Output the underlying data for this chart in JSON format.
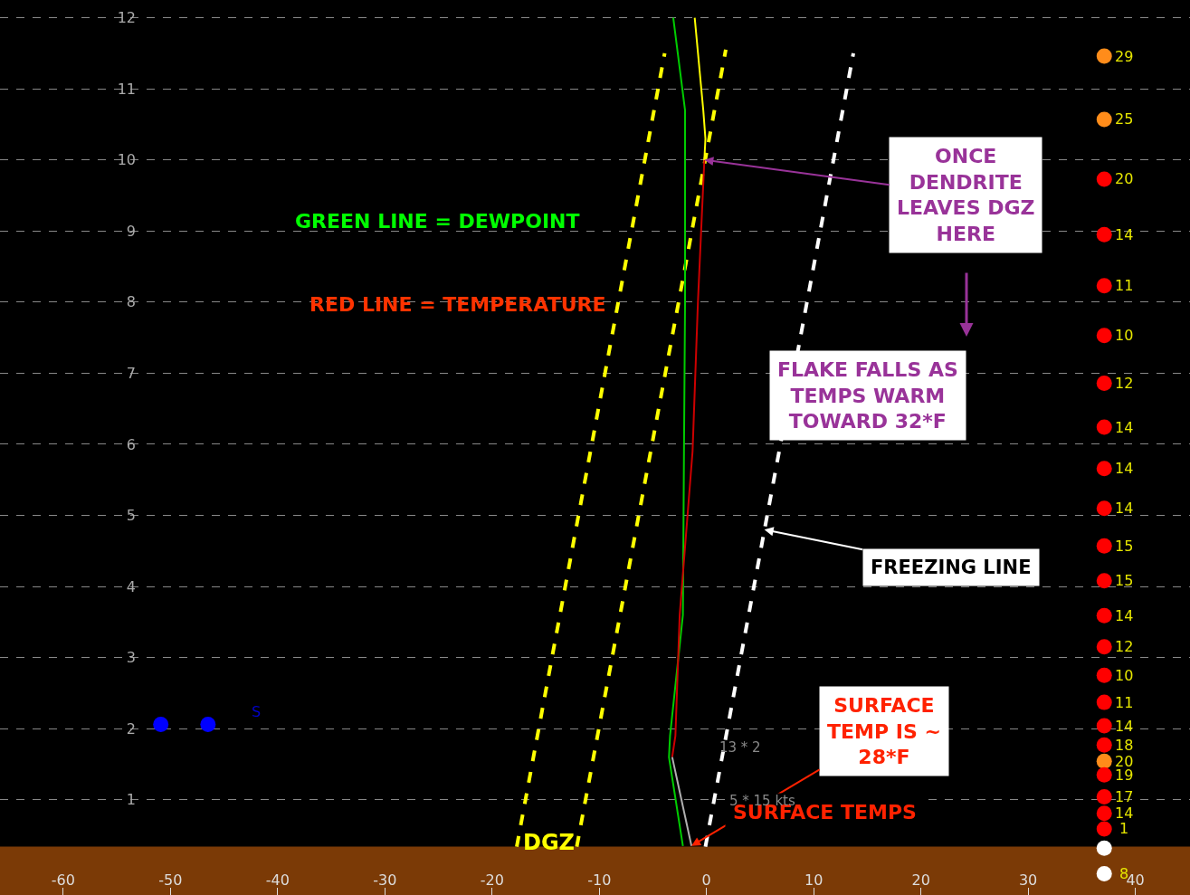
{
  "chart_data": {
    "type": "line",
    "xlim": [
      -65.9,
      45.1
    ],
    "ylim": [
      -0.34,
      12.25
    ],
    "xticks": [
      -60,
      -50,
      -40,
      -30,
      -20,
      -10,
      0,
      10,
      20,
      30,
      40
    ],
    "yticks": [
      1,
      2,
      3,
      4,
      5,
      6,
      7,
      8,
      9,
      10,
      11,
      12
    ],
    "grid": "y",
    "bands": [
      {
        "axis": "y",
        "from": -0.34,
        "to": 0.34,
        "color": "#7b3a06"
      }
    ],
    "series": [
      {
        "color": "#ffff00",
        "line_style": "dashed",
        "x": [
          -17.7,
          -3.9
        ],
        "values": [
          0.34,
          11.5
        ]
      },
      {
        "color": "#ffff00",
        "line_style": "dashed",
        "x": [
          -12.1,
          1.8
        ],
        "values": [
          0.34,
          11.55
        ]
      },
      {
        "color": "#ffffff",
        "line_style": "dashed",
        "x": [
          -0.1,
          13.7
        ],
        "values": [
          0.34,
          11.5
        ]
      },
      {
        "color": "#00cc00",
        "line_style": "solid",
        "x": [
          -3.1,
          -2.0,
          -2.0,
          -2.1,
          -2.2,
          -3.4,
          -3.5,
          -2.2
        ],
        "values": [
          12.0,
          10.7,
          8.0,
          5.9,
          3.6,
          1.9,
          1.6,
          0.35
        ]
      },
      {
        "color": "#cc0000",
        "line_style": "solid",
        "x": [
          -0.2,
          -0.8,
          -1.3,
          -2.5,
          -2.9,
          -3.2
        ],
        "values": [
          10.0,
          8.0,
          5.9,
          3.6,
          1.9,
          1.6
        ]
      },
      {
        "color": "#b0b0b0",
        "line_style": "solid",
        "x": [
          -3.2,
          -1.4
        ],
        "values": [
          1.6,
          0.35
        ]
      },
      {
        "color": "#ffff00",
        "line_style": "solid",
        "x": [
          -1.1,
          -0.3,
          -0.1,
          -0.2
        ],
        "values": [
          12.0,
          10.7,
          10.3,
          10.0
        ]
      },
      {
        "color": "#0000ff",
        "type": "scatter",
        "x": [
          -50.9,
          -46.5
        ],
        "values": [
          2.06,
          2.06
        ]
      },
      {
        "type": "scatter",
        "x": [
          37.1,
          37.1,
          37.1,
          37.1,
          37.1,
          37.1,
          37.1,
          37.1,
          37.1,
          37.1,
          37.1,
          37.1,
          37.1,
          37.1,
          37.1,
          37.1,
          37.1,
          37.1,
          37.1,
          37.1,
          37.1,
          37.1,
          37.1,
          37.1,
          37.1
        ],
        "values": [
          11.46,
          10.57,
          9.73,
          8.95,
          8.23,
          7.53,
          6.86,
          6.24,
          5.66,
          5.1,
          4.57,
          4.08,
          3.59,
          3.15,
          2.75,
          2.37,
          2.04,
          1.77,
          1.54,
          1.35,
          1.04,
          0.81,
          0.59,
          0.32,
          -0.04
        ],
        "colors": [
          "#ff8c1a",
          "#ff8c1a",
          "#ff0000",
          "#ff0000",
          "#ff0000",
          "#ff0000",
          "#ff0000",
          "#ff0000",
          "#ff0000",
          "#ff0000",
          "#ff0000",
          "#ff0000",
          "#ff0000",
          "#ff0000",
          "#ff0000",
          "#ff0000",
          "#ff0000",
          "#ff0000",
          "#ff8c1a",
          "#ff0000",
          "#ff0000",
          "#ff0000",
          "#ff0000",
          "#ffffff",
          "#ffffff"
        ]
      }
    ],
    "annotations": [
      "GREEN LINE = DEWPOINT",
      "RED LINE = TEMPERATURE",
      {
        "text": "ONCE\nDENDRITE\nLEAVES DGZ\nHERE",
        "x": -0.2,
        "y": 10.0
      },
      "FLAKE FALLS AS\nTEMPS WARM\nTOWARD 32*F",
      {
        "text": "FREEZING LINE",
        "x": 5.4,
        "y": 4.8
      },
      {
        "text": "SURFACE\nTEMP IS ~\n28*F",
        "x": -1.4,
        "y": 0.35
      },
      "SURFACE TEMPS",
      "DGZ",
      "13 * 2",
      "5 * 15 kts",
      "S",
      {
        "text": "29",
        "x": 37.1,
        "y": 11.46
      },
      {
        "text": "25",
        "x": 37.1,
        "y": 10.57
      },
      {
        "text": "20",
        "x": 37.1,
        "y": 9.73
      },
      {
        "text": "14",
        "x": 37.1,
        "y": 8.95
      },
      {
        "text": "11",
        "x": 37.1,
        "y": 8.23
      },
      {
        "text": "10",
        "x": 37.1,
        "y": 7.53
      },
      {
        "text": "12",
        "x": 37.1,
        "y": 6.86
      },
      {
        "text": "14",
        "x": 37.1,
        "y": 6.24
      },
      {
        "text": "14",
        "x": 37.1,
        "y": 5.66
      },
      {
        "text": "14",
        "x": 37.1,
        "y": 5.1
      },
      {
        "text": "15",
        "x": 37.1,
        "y": 4.57
      },
      {
        "text": "15",
        "x": 37.1,
        "y": 4.08
      },
      {
        "text": "14",
        "x": 37.1,
        "y": 3.59
      },
      {
        "text": "12",
        "x": 37.1,
        "y": 3.15
      },
      {
        "text": "10",
        "x": 37.1,
        "y": 2.75
      },
      {
        "text": "11",
        "x": 37.1,
        "y": 2.37
      },
      {
        "text": "14",
        "x": 37.1,
        "y": 2.04
      },
      {
        "text": "18",
        "x": 37.1,
        "y": 1.77
      },
      {
        "text": "20",
        "x": 37.1,
        "y": 1.54
      },
      {
        "text": "19",
        "x": 37.1,
        "y": 1.35
      },
      {
        "text": "17",
        "x": 37.1,
        "y": 1.04
      },
      {
        "text": "14",
        "x": 37.1,
        "y": 0.81
      },
      {
        "text": "1",
        "x": 37.1,
        "y": 0.59
      },
      {
        "text": "8",
        "x": 37.1,
        "y": -0.04
      }
    ]
  }
}
